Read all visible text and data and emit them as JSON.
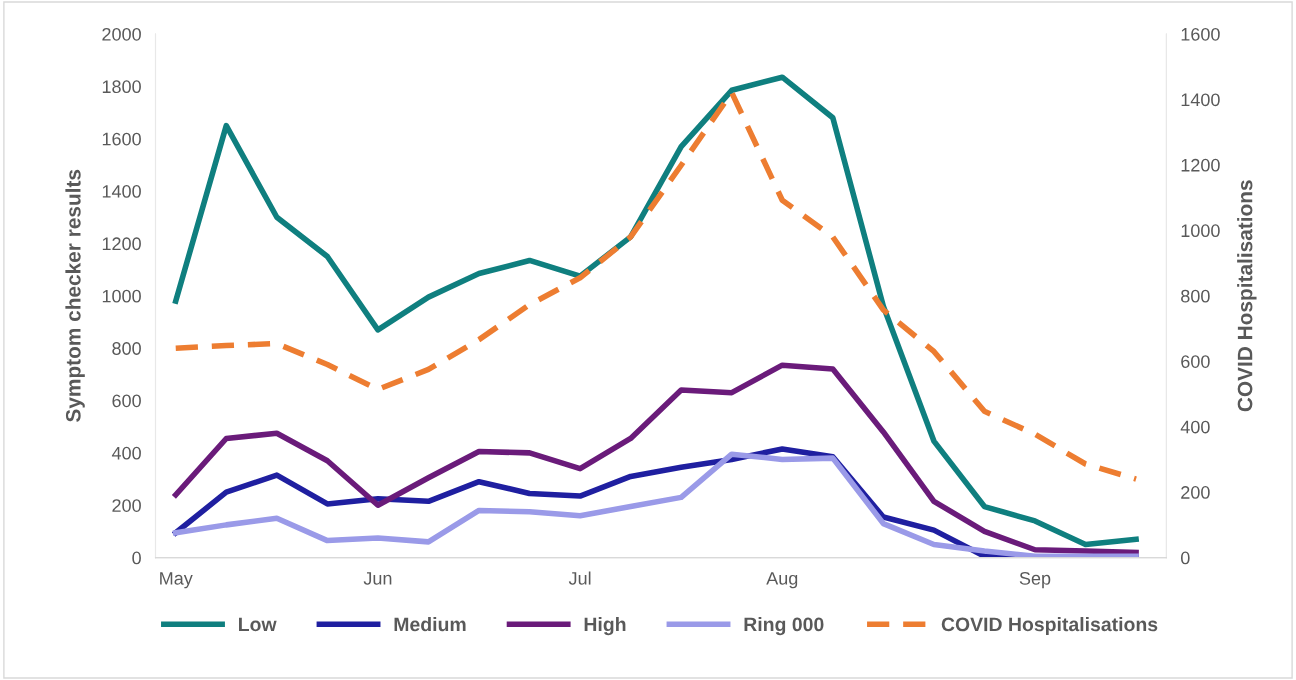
{
  "chart_data": {
    "type": "line",
    "ylabel": "Symptom checker results",
    "y2label": "COVID Hospitalisations",
    "categories": [
      "May",
      null,
      null,
      null,
      "Jun",
      null,
      null,
      null,
      "Jul",
      null,
      null,
      null,
      "Aug",
      null,
      null,
      null,
      null,
      "Sep",
      null,
      null
    ],
    "ylim": [
      0,
      2000
    ],
    "yticks": [
      0,
      200,
      400,
      600,
      800,
      1000,
      1200,
      1400,
      1600,
      1800,
      2000
    ],
    "y2lim": [
      0,
      1600
    ],
    "y2ticks": [
      0,
      200,
      400,
      600,
      800,
      1000,
      1200,
      1400,
      1600
    ],
    "grid": false,
    "legend": "bottom",
    "marker": "none",
    "series": [
      {
        "name": "Low",
        "color": "#0f7f7f",
        "line_style": "solid",
        "values": [
          980,
          1650,
          1300,
          1150,
          870,
          995,
          1085,
          1135,
          1075,
          1225,
          1570,
          1785,
          1835,
          1680,
          960,
          445,
          195,
          140,
          50,
          70
        ]
      },
      {
        "name": "Medium",
        "color": "#1f1fa0",
        "line_style": "solid",
        "values": [
          95,
          250,
          315,
          205,
          225,
          215,
          290,
          245,
          235,
          310,
          345,
          375,
          415,
          385,
          155,
          105,
          5,
          0,
          0,
          0
        ]
      },
      {
        "name": "High",
        "color": "#6a1b7a",
        "line_style": "solid",
        "values": [
          240,
          455,
          475,
          370,
          200,
          305,
          405,
          400,
          340,
          455,
          640,
          630,
          735,
          720,
          480,
          215,
          100,
          30,
          25,
          20
        ]
      },
      {
        "name": "Ring 000",
        "color": "#9a9ae8",
        "line_style": "solid",
        "values": [
          95,
          125,
          150,
          65,
          75,
          60,
          180,
          175,
          160,
          195,
          230,
          395,
          375,
          380,
          130,
          50,
          25,
          5,
          5,
          5
        ]
      },
      {
        "name": "COVID Hospitalisations",
        "color": "#ed7d31",
        "line_style": "dashed",
        "axis": "y2",
        "values": [
          640,
          648,
          654,
          590,
          514,
          575,
          666,
          773,
          855,
          980,
          1199,
          1421,
          1092,
          980,
          757,
          630,
          447,
          377,
          286,
          240
        ]
      }
    ]
  }
}
